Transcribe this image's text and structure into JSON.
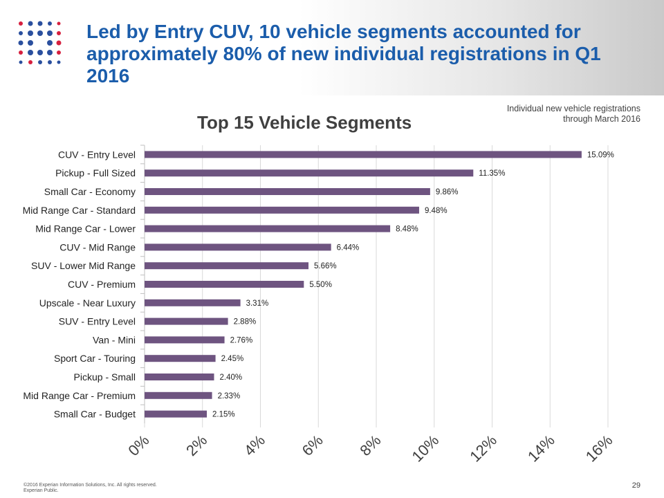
{
  "header": {
    "title": "Led by Entry CUV, 10 vehicle segments accounted for approximately 80% of new individual registrations in Q1 2016",
    "subtitle_line1": "Individual new vehicle registrations",
    "subtitle_line2": "through March 2016"
  },
  "colors": {
    "title": "#1b5dab",
    "bar": "#6e5480",
    "logo_blue": "#2a4f9e",
    "logo_red": "#d6203f"
  },
  "chart_data": {
    "type": "bar",
    "orientation": "horizontal",
    "title": "Top 15 Vehicle Segments",
    "categories": [
      "CUV - Entry Level",
      "Pickup - Full Sized",
      "Small Car - Economy",
      "Mid Range Car - Standard",
      "Mid Range Car - Lower",
      "CUV - Mid Range",
      "SUV - Lower Mid Range",
      "CUV - Premium",
      "Upscale - Near Luxury",
      "SUV - Entry Level",
      "Van - Mini",
      "Sport Car - Touring",
      "Pickup - Small",
      "Mid Range Car - Premium",
      "Small Car - Budget"
    ],
    "values": [
      15.09,
      11.35,
      9.86,
      9.48,
      8.48,
      6.44,
      5.66,
      5.5,
      3.31,
      2.88,
      2.76,
      2.45,
      2.4,
      2.33,
      2.15
    ],
    "value_labels": [
      "15.09%",
      "11.35%",
      "9.86%",
      "9.48%",
      "8.48%",
      "6.44%",
      "5.66%",
      "5.50%",
      "3.31%",
      "2.88%",
      "2.76%",
      "2.45%",
      "2.40%",
      "2.33%",
      "2.15%"
    ],
    "xticks": [
      "0%",
      "2%",
      "4%",
      "6%",
      "8%",
      "10%",
      "12%",
      "14%",
      "16%"
    ],
    "xlim": [
      0,
      16
    ],
    "grid": "vertical",
    "legend": "none"
  },
  "footer": {
    "copyright": "©2016 Experian Information Solutions, Inc. All rights reserved.",
    "classification": "Experian Public.",
    "page_number": "29"
  }
}
